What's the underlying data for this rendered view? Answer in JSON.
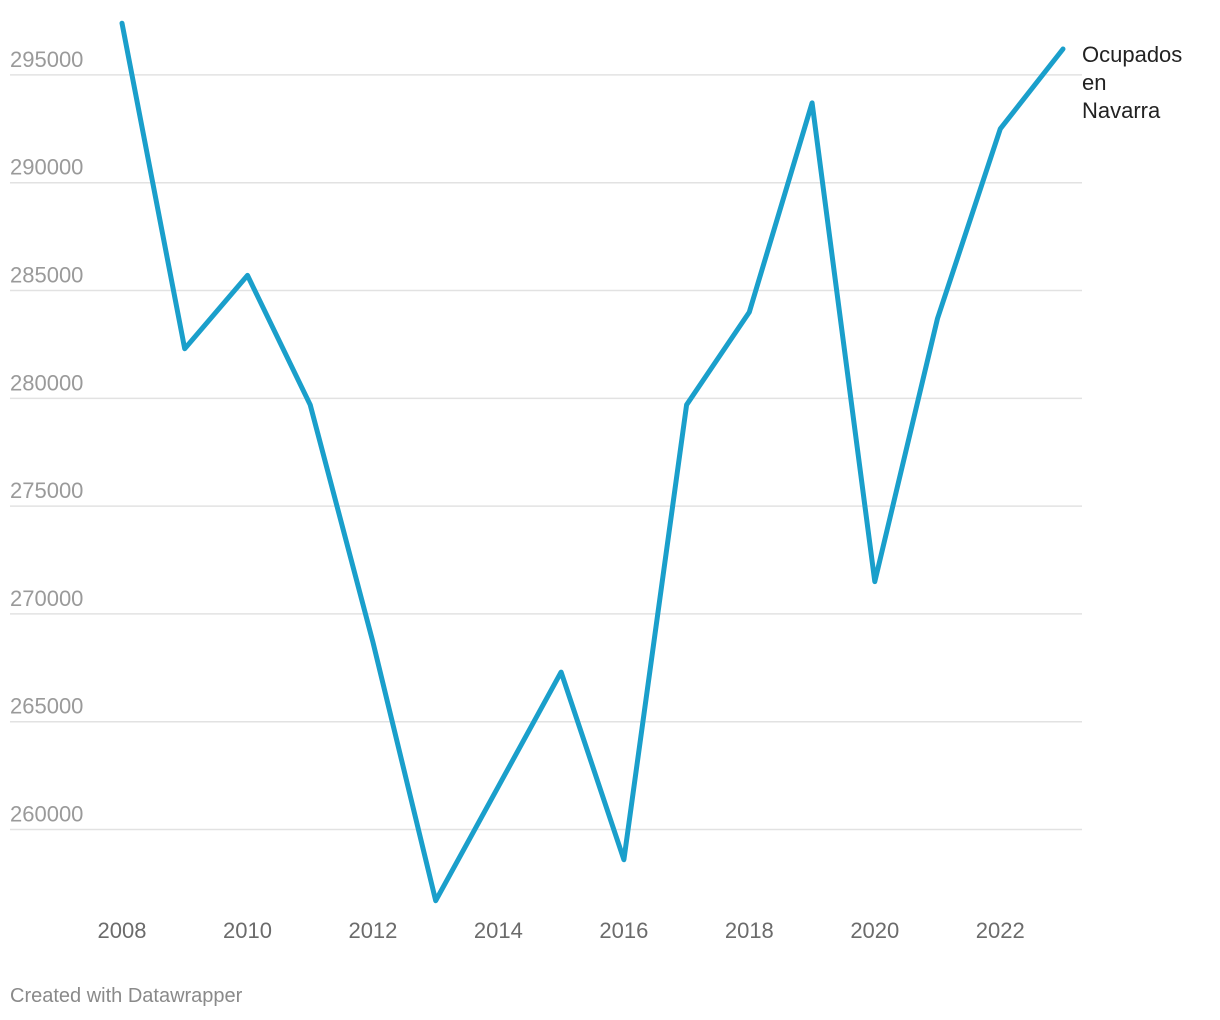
{
  "chart_data": {
    "type": "line",
    "title": "",
    "xlabel": "",
    "ylabel": "",
    "x": [
      2008,
      2009,
      2010,
      2011,
      2012,
      2013,
      2014,
      2015,
      2016,
      2017,
      2018,
      2019,
      2020,
      2021,
      2022,
      2023
    ],
    "x_ticks": [
      "2008",
      "2010",
      "2012",
      "2014",
      "2016",
      "2018",
      "2020",
      "2022"
    ],
    "y_ticks": [
      "260000",
      "265000",
      "270000",
      "275000",
      "280000",
      "285000",
      "290000",
      "295000"
    ],
    "ylim": [
      256500,
      297500
    ],
    "grid": true,
    "series": [
      {
        "name": "Ocupados en Navarra",
        "name_lines": [
          "Ocupados",
          "en",
          "Navarra"
        ],
        "color": "#1a9fcb",
        "values": [
          297400,
          282300,
          285700,
          279700,
          268700,
          256700,
          262000,
          267300,
          258600,
          279700,
          284000,
          293700,
          271500,
          283700,
          292500,
          296200
        ]
      }
    ]
  },
  "footer": {
    "credit": "Created with Datawrapper"
  }
}
